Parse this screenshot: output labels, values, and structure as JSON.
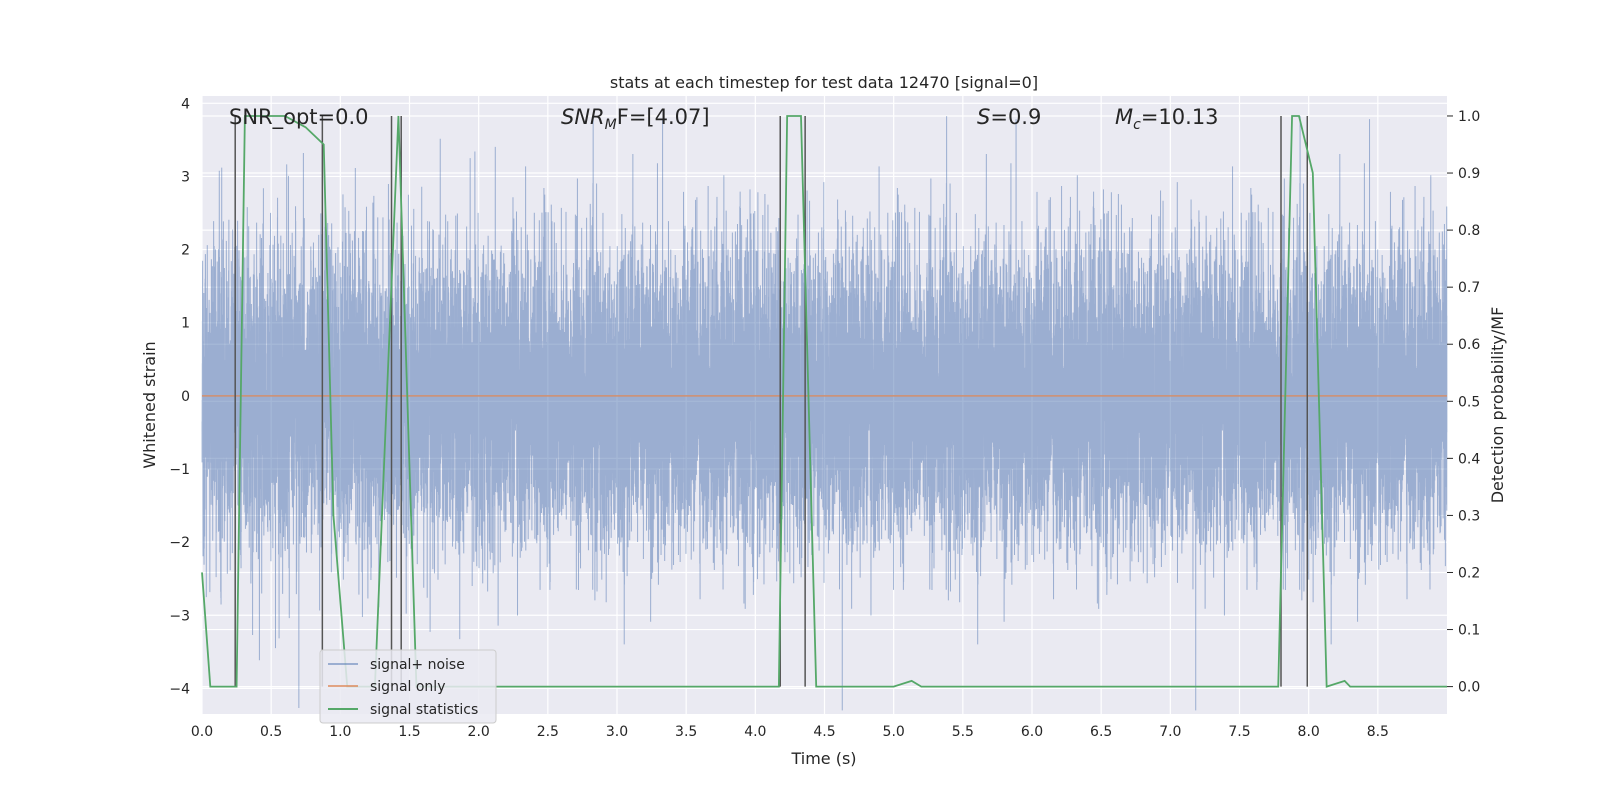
{
  "chart_data": {
    "type": "line",
    "title": "stats at each timestep for test data 12470 [signal=0]",
    "xlabel": "Time (s)",
    "ylabel": "Whitened strain",
    "y2label": "Detection probability/MF",
    "xlim": [
      0,
      9.0
    ],
    "ylim": [
      -4.35,
      4.1
    ],
    "y2lim": [
      -0.048,
      1.035
    ],
    "xticks": [
      0.0,
      0.5,
      1.0,
      1.5,
      2.0,
      2.5,
      3.0,
      3.5,
      4.0,
      4.5,
      5.0,
      5.5,
      6.0,
      6.5,
      7.0,
      7.5,
      8.0,
      8.5
    ],
    "xtick_labels": [
      "0.0",
      "0.5",
      "1.0",
      "1.5",
      "2.0",
      "2.5",
      "3.0",
      "3.5",
      "4.0",
      "4.5",
      "5.0",
      "5.5",
      "6.0",
      "6.5",
      "7.0",
      "7.5",
      "8.0",
      "8.5"
    ],
    "yticks": [
      -4,
      -3,
      -2,
      -1,
      0,
      1,
      2,
      3,
      4
    ],
    "ytick_labels": [
      "−4",
      "−3",
      "−2",
      "−1",
      "0",
      "1",
      "2",
      "3",
      "4"
    ],
    "y2ticks": [
      0.0,
      0.1,
      0.2,
      0.3,
      0.4,
      0.5,
      0.6,
      0.7,
      0.8,
      0.9,
      1.0
    ],
    "y2tick_labels": [
      "0.0",
      "0.1",
      "0.2",
      "0.3",
      "0.4",
      "0.5",
      "0.6",
      "0.7",
      "0.8",
      "0.9",
      "1.0"
    ],
    "grid": true,
    "legend_placement": "lower-left",
    "annotations": {
      "snr_opt": "SNR_opt=0.0",
      "snr_mf_base": "SNR",
      "snr_mf_sub": "M",
      "snr_mf_rest": "F=[4.07]",
      "s_var": "S",
      "s_rest": "=0.9",
      "mc_var": "M",
      "mc_sub": "c",
      "mc_rest": "=10.13"
    },
    "series": [
      {
        "name": "signal+ noise",
        "color": "#4c72b0",
        "axis": "left",
        "kind": "noise",
        "sample_rate": 2048,
        "amplitude_std": 1.0
      },
      {
        "name": "signal only",
        "color": "#dd8452",
        "axis": "left",
        "x": [
          0,
          9.0
        ],
        "y": [
          0,
          0
        ]
      },
      {
        "name": "signal statistics",
        "color": "#55a868",
        "axis": "right",
        "x": [
          0.0,
          0.06,
          0.25,
          0.31,
          0.6,
          0.75,
          0.88,
          0.95,
          1.05,
          1.15,
          1.25,
          1.42,
          1.55,
          1.65,
          4.17,
          4.23,
          4.33,
          4.44,
          5.0,
          5.13,
          5.2,
          7.78,
          7.88,
          7.93,
          8.03,
          8.13,
          8.26,
          8.3,
          8.6,
          9.0
        ],
        "y": [
          0.2,
          0.0,
          0.0,
          1.0,
          1.0,
          0.98,
          0.95,
          0.3,
          0.0,
          0.0,
          0.0,
          1.0,
          0.0,
          0.0,
          0.0,
          1.0,
          1.0,
          0.0,
          0.0,
          0.01,
          0.0,
          0.0,
          1.0,
          1.0,
          0.9,
          0.0,
          0.01,
          0.0,
          0.0,
          0.0
        ]
      }
    ],
    "vlines": [
      0.24,
      0.87,
      1.37,
      1.44,
      4.18,
      4.36,
      7.8,
      7.99
    ],
    "vline_color": "#555555"
  }
}
